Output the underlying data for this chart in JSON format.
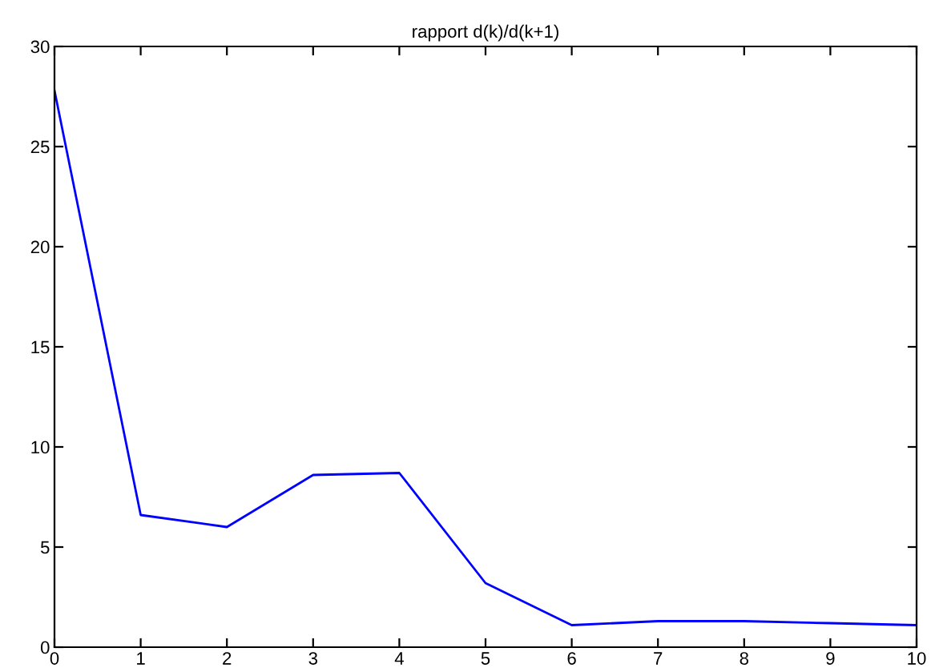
{
  "chart_data": {
    "type": "line",
    "title": "rapport d(k)/d(k+1)",
    "x": [
      0,
      1,
      2,
      3,
      4,
      5,
      6,
      7,
      8,
      9,
      10
    ],
    "series": [
      {
        "color": "#0000ff",
        "values": [
          27.8,
          6.6,
          6.0,
          8.6,
          8.7,
          3.2,
          1.1,
          1.3,
          1.3,
          1.2,
          1.1
        ]
      }
    ],
    "xlim": [
      0,
      10
    ],
    "xticks": [
      0,
      1,
      2,
      3,
      4,
      5,
      6,
      7,
      8,
      9,
      10
    ],
    "ylim": [
      0,
      30
    ],
    "yticks": [
      0,
      5,
      10,
      15,
      20,
      25,
      30
    ],
    "grid": false,
    "legend": false,
    "marker": "none",
    "line_style": "solid"
  }
}
